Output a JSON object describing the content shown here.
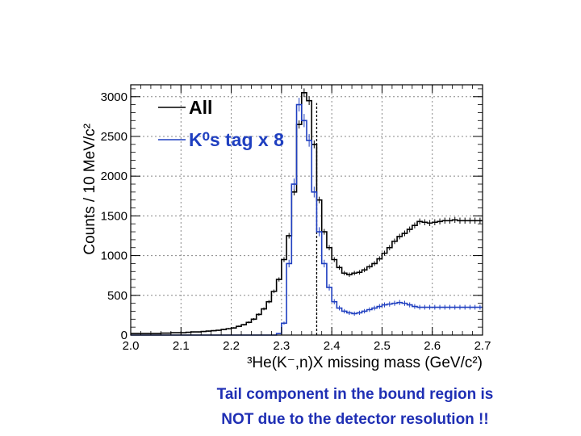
{
  "chart_data": {
    "type": "histogram",
    "xlabel": "³He(K⁻,n)X missing mass (GeV/c²)",
    "ylabel": "Counts / 10 MeV/c²",
    "xlim": [
      2.0,
      2.7
    ],
    "ylim": [
      0,
      3150
    ],
    "xticks": [
      "2.0",
      "2.1",
      "2.2",
      "2.3",
      "2.4",
      "2.5",
      "2.6",
      "2.7"
    ],
    "yticks": [
      "0",
      "500",
      "1000",
      "1500",
      "2000",
      "2500",
      "3000"
    ],
    "grid": true,
    "legend_position": "top-left",
    "threshold_line_x": 2.37,
    "bin_width": 0.01,
    "series": [
      {
        "name": "All",
        "color": "#000000",
        "bin_start": 2.0,
        "values": [
          20,
          20,
          20,
          20,
          20,
          20,
          25,
          25,
          30,
          30,
          30,
          35,
          40,
          40,
          45,
          50,
          55,
          60,
          70,
          80,
          90,
          110,
          130,
          160,
          200,
          260,
          330,
          420,
          550,
          700,
          950,
          1250,
          1800,
          2650,
          3050,
          2950,
          2400,
          1700,
          1300,
          1100,
          950,
          850,
          780,
          760,
          780,
          790,
          820,
          860,
          900,
          960,
          1030,
          1100,
          1180,
          1240,
          1280,
          1330,
          1380,
          1430,
          1420,
          1410,
          1420,
          1430,
          1440,
          1440,
          1450,
          1440,
          1440,
          1440,
          1440,
          1440
        ]
      },
      {
        "name": "K⁰s tag x 8",
        "color": "#1f3fc0",
        "bin_start": 2.0,
        "values": [
          0,
          0,
          0,
          0,
          0,
          0,
          0,
          0,
          0,
          0,
          0,
          0,
          0,
          0,
          0,
          0,
          0,
          0,
          0,
          0,
          0,
          0,
          0,
          0,
          0,
          0,
          0,
          0,
          0,
          20,
          150,
          900,
          1900,
          2900,
          2700,
          2450,
          1800,
          1300,
          900,
          600,
          420,
          340,
          300,
          280,
          270,
          280,
          300,
          320,
          340,
          360,
          380,
          390,
          400,
          410,
          400,
          380,
          360,
          350,
          350,
          350,
          350,
          350,
          350,
          350,
          350,
          350,
          350,
          350,
          350,
          350
        ]
      }
    ]
  },
  "caption": {
    "line1": "Tail component in the bound region is",
    "line2": "NOT due to the detector resolution !!"
  }
}
